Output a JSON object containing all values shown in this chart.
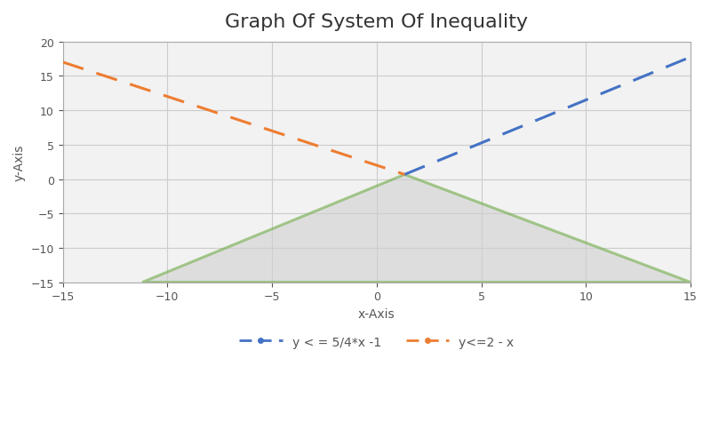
{
  "title": "Graph Of System Of Inequality",
  "xlabel": "x-Axis",
  "ylabel": "y-Axis",
  "xlim": [
    -15,
    15
  ],
  "ylim": [
    -15,
    20
  ],
  "xticks": [
    -15,
    -10,
    -5,
    0,
    5,
    10,
    15
  ],
  "yticks": [
    -15,
    -10,
    -5,
    0,
    5,
    10,
    15,
    20
  ],
  "line1_label": "y < = 5/4*x -1",
  "line1_color": "#4472C4",
  "line1_slope": 1.25,
  "line1_intercept": -1,
  "line2_label": "y<=2 - x",
  "line2_color": "#ED7D31",
  "line2_slope": -1,
  "line2_intercept": 2,
  "shade_color": "#D0D0D0",
  "shade_alpha": 0.6,
  "border_color": "#70AD47",
  "border_linewidth": 2.2,
  "grid_color": "#CCCCCC",
  "bg_color": "#F2F2F2",
  "title_fontsize": 16,
  "axis_label_fontsize": 10,
  "tick_fontsize": 9,
  "legend_fontsize": 10,
  "y_bottom": -15
}
